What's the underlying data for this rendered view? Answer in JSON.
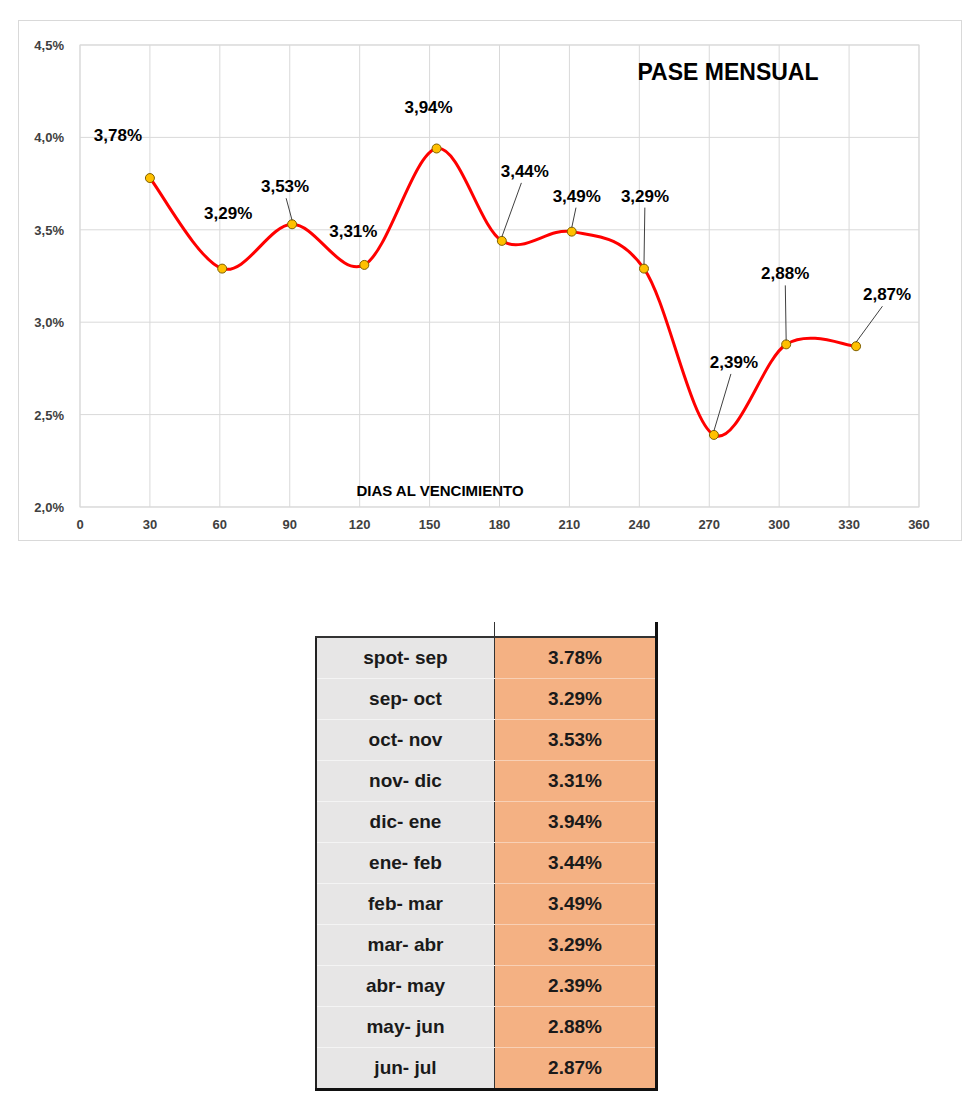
{
  "chart_data": {
    "type": "line",
    "title": "PASE MENSUAL",
    "x_label": "DIAS AL VENCIMIENTO",
    "x": [
      30,
      61,
      91,
      122,
      153,
      181,
      211,
      242,
      272,
      303,
      333
    ],
    "values": [
      3.78,
      3.29,
      3.53,
      3.31,
      3.94,
      3.44,
      3.49,
      3.29,
      2.39,
      2.88,
      2.87
    ],
    "value_labels": [
      "3,78%",
      "3,29%",
      "3,53%",
      "3,31%",
      "3,94%",
      "3,44%",
      "3,49%",
      "3,29%",
      "2,39%",
      "2,88%",
      "2,87%"
    ],
    "color": "#ff0000",
    "marker": "circle",
    "line_style": "smooth",
    "xlim": [
      0,
      360
    ],
    "xticks": [
      0,
      30,
      60,
      90,
      120,
      150,
      180,
      210,
      240,
      270,
      300,
      330,
      360
    ],
    "ylim": [
      2.0,
      4.5
    ],
    "yticks": [
      {
        "value": 2.0,
        "label": "2,0%"
      },
      {
        "value": 2.5,
        "label": "2,5%"
      },
      {
        "value": 3.0,
        "label": "3,0%"
      },
      {
        "value": 3.5,
        "label": "3,5%"
      },
      {
        "value": 4.0,
        "label": "4,0%"
      },
      {
        "value": 4.5,
        "label": "4,5%"
      }
    ],
    "grid": true,
    "data_labels": true
  },
  "table": {
    "rows": [
      [
        "spot- sep",
        "3.78%"
      ],
      [
        "sep- oct",
        "3.29%"
      ],
      [
        "oct- nov",
        "3.53%"
      ],
      [
        "nov- dic",
        "3.31%"
      ],
      [
        "dic- ene",
        "3.94%"
      ],
      [
        "ene- feb",
        "3.44%"
      ],
      [
        "feb- mar",
        "3.49%"
      ],
      [
        "mar- abr",
        "3.29%"
      ],
      [
        "abr- may",
        "2.39%"
      ],
      [
        "may- jun",
        "2.88%"
      ],
      [
        "jun- jul",
        "2.87%"
      ]
    ]
  }
}
